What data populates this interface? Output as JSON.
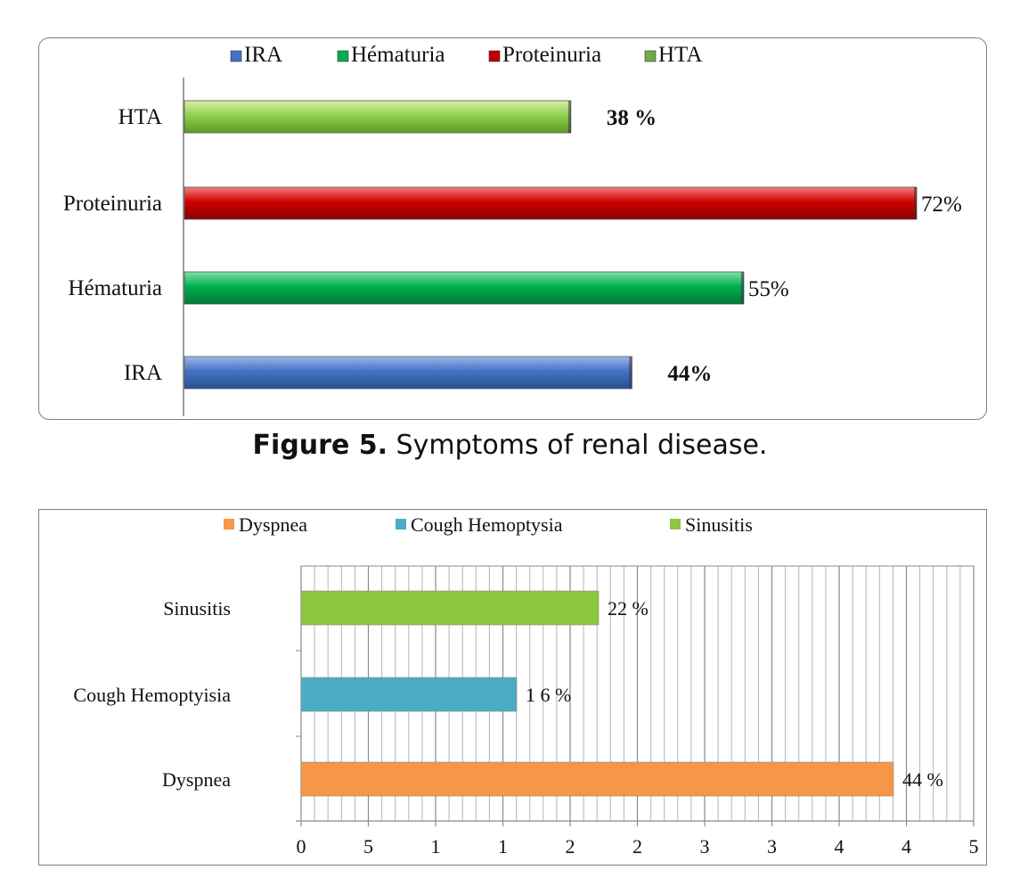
{
  "figure5": {
    "caption_label": "Figure 5.",
    "caption_text": " Symptoms of renal disease.",
    "legend": [
      {
        "name": "IRA",
        "color": "#4472c4"
      },
      {
        "name": "Hématuria",
        "color": "#00b050"
      },
      {
        "name": "Proteinuria",
        "color": "#c00000"
      },
      {
        "name": "HTA",
        "color": "#70ad47"
      }
    ]
  },
  "chart_data": [
    {
      "type": "bar",
      "orientation": "horizontal",
      "categories": [
        "IRA",
        "Hématuria",
        "Proteinuria",
        "HTA"
      ],
      "values": [
        44,
        55,
        72,
        38
      ],
      "data_labels": [
        "44%",
        "55%",
        "72%",
        "38 %"
      ],
      "bold_labels": [
        true,
        false,
        false,
        true
      ],
      "colors": [
        "#4472c4",
        "#00b050",
        "#c00000",
        "#92d050"
      ],
      "legend_position": "top",
      "grid": false,
      "xlim": [
        0,
        72
      ]
    },
    {
      "type": "bar",
      "orientation": "horizontal",
      "categories": [
        "Dyspnea",
        "Cough Hemoptyisia",
        "Sinusitis"
      ],
      "values": [
        44,
        16,
        22
      ],
      "data_labels": [
        "44 %",
        "1 6 %",
        "22 %"
      ],
      "colors": [
        "#f79646",
        "#4bacc6",
        "#8dc63f"
      ],
      "legend": [
        "Dyspnea",
        "Cough Hemoptysia",
        "Sinusitis"
      ],
      "legend_position": "top",
      "grid": true,
      "tick_labels": [
        "0",
        "5",
        "1",
        "1",
        "2",
        "2",
        "3",
        "3",
        "4",
        "4",
        "5"
      ],
      "xlim": [
        0,
        50
      ]
    }
  ]
}
